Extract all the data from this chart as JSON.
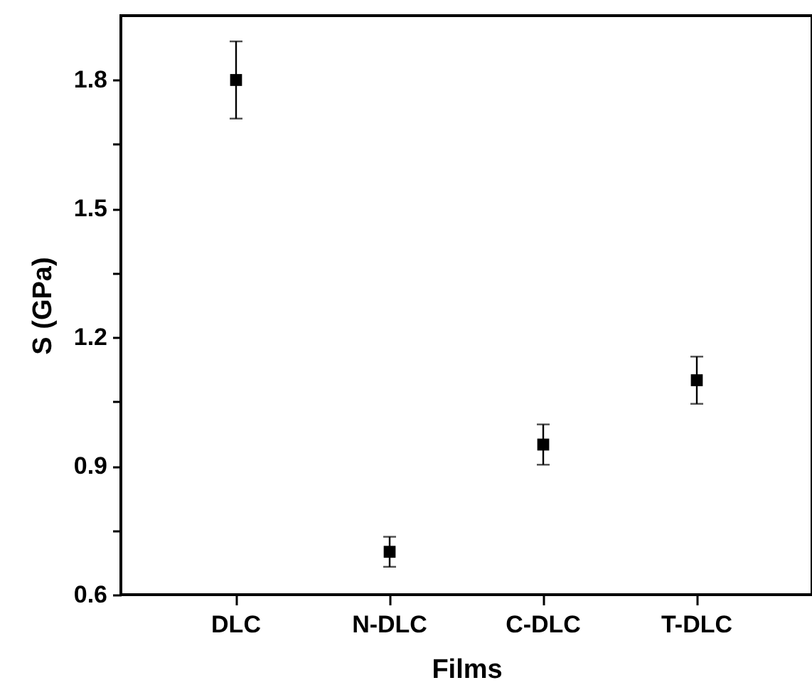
{
  "chart_data": {
    "type": "scatter",
    "xlabel": "Films",
    "ylabel": "S (GPa)",
    "categories": [
      "DLC",
      "N-DLC",
      "C-DLC",
      "T-DLC"
    ],
    "values": [
      1.8,
      0.7,
      0.95,
      1.1
    ],
    "errors": [
      0.09,
      0.035,
      0.047,
      0.055
    ],
    "color": "#000000",
    "marker": "square",
    "ylim": [
      0.6,
      1.95
    ],
    "yticks": [
      0.6,
      {
        "value": 0.75,
        "label": null
      },
      0.9,
      {
        "value": 1.05,
        "label": null
      },
      1.2,
      {
        "value": 1.35,
        "label": null
      },
      1.5,
      {
        "value": 1.65,
        "label": null
      },
      1.8
    ],
    "grid": false
  }
}
